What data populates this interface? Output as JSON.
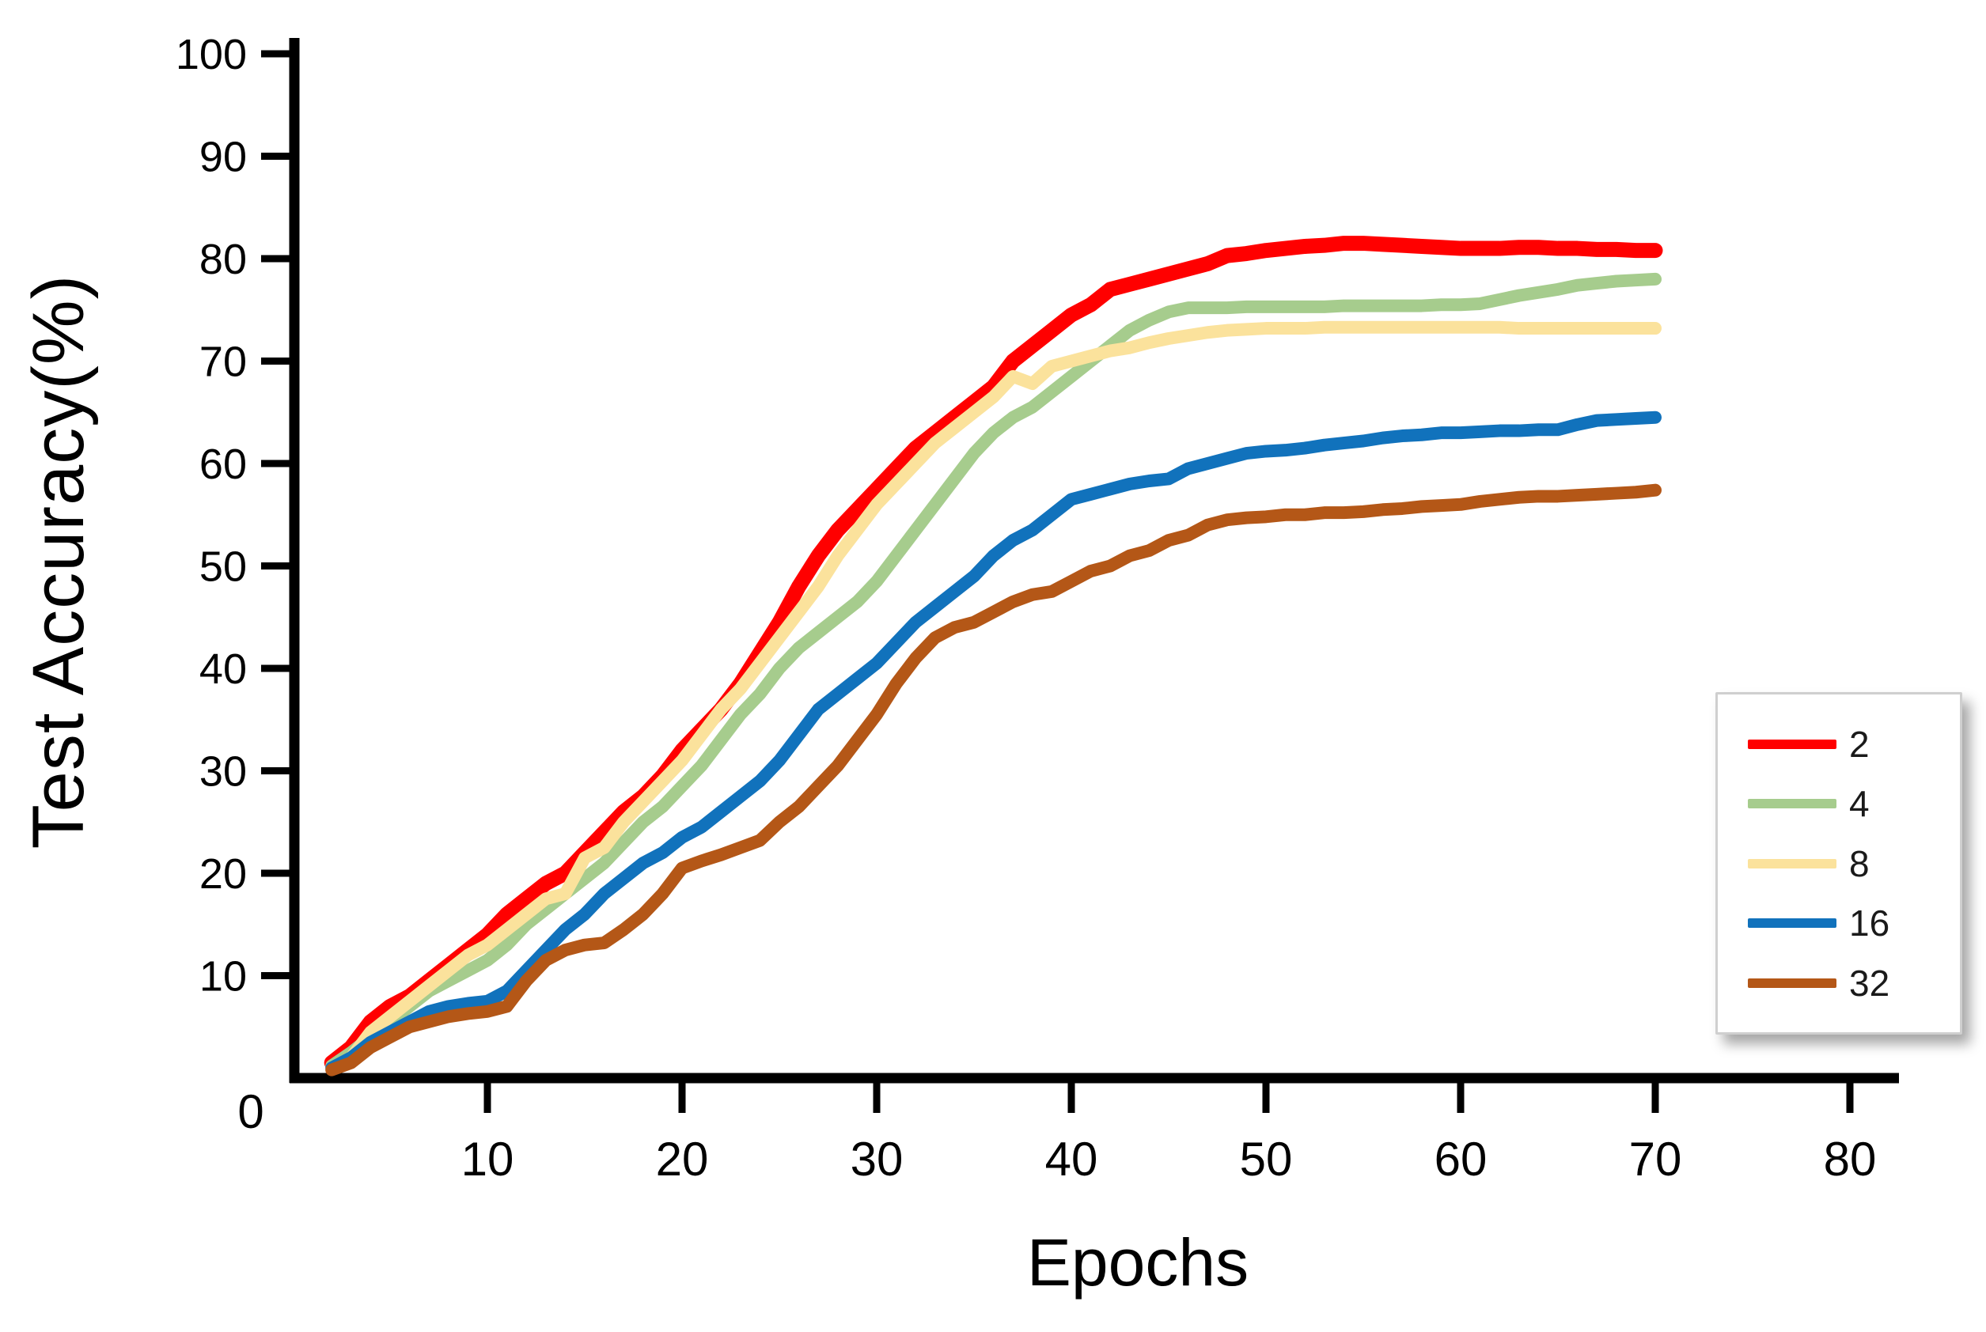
{
  "page": {
    "background": "#ffffff",
    "text_color": "#000000",
    "axis_color": "#000000"
  },
  "chart_data": {
    "type": "line",
    "title": "",
    "xlabel": "Epochs",
    "ylabel": "Test Accuracy(%)",
    "xlim": [
      0,
      83
    ],
    "ylim": [
      0,
      100
    ],
    "x_ticks": [
      0,
      10,
      20,
      30,
      40,
      50,
      60,
      70,
      80
    ],
    "y_ticks": [
      10,
      20,
      30,
      40,
      50,
      60,
      70,
      80,
      90,
      100
    ],
    "grid": false,
    "legend_position": "right-middle",
    "legend_border_color": "#cfcfcf",
    "x": [
      2,
      3,
      4,
      5,
      6,
      7,
      8,
      9,
      10,
      11,
      12,
      13,
      14,
      15,
      16,
      17,
      18,
      19,
      20,
      21,
      22,
      23,
      24,
      25,
      26,
      27,
      28,
      29,
      30,
      31,
      32,
      33,
      34,
      35,
      36,
      37,
      38,
      39,
      40,
      41,
      42,
      43,
      44,
      45,
      46,
      47,
      48,
      49,
      50,
      51,
      52,
      53,
      54,
      55,
      56,
      57,
      58,
      59,
      60,
      61,
      62,
      63,
      64,
      65,
      66,
      67,
      68,
      69,
      70
    ],
    "series": [
      {
        "name": "2",
        "color": "#ff0000",
        "values": [
          1.5,
          3,
          5.5,
          7,
          8,
          9.5,
          11,
          12.5,
          14,
          16,
          17.5,
          19,
          20,
          22,
          24,
          26,
          27.5,
          29.5,
          32,
          34,
          36,
          38.5,
          41.5,
          44.5,
          48,
          51,
          53.5,
          55.5,
          57.5,
          59.5,
          61.5,
          63,
          64.5,
          66,
          67.5,
          70,
          71.5,
          73,
          74.5,
          75.5,
          77,
          77.5,
          78,
          78.5,
          79,
          79.5,
          80.3,
          80.5,
          80.8,
          81,
          81.2,
          81.3,
          81.5,
          81.5,
          81.4,
          81.3,
          81.2,
          81.1,
          81,
          81,
          81,
          81.1,
          81.1,
          81,
          81,
          80.9,
          80.9,
          80.8,
          80.8
        ]
      },
      {
        "name": "4",
        "color": "#a6cc8d",
        "values": [
          1.2,
          2.5,
          4,
          5.5,
          7,
          8.5,
          9.5,
          10.5,
          11.5,
          13,
          15,
          16.5,
          18,
          19.5,
          21,
          23,
          25,
          26.5,
          28.5,
          30.5,
          33,
          35.5,
          37.5,
          40,
          42,
          43.5,
          45,
          46.5,
          48.5,
          51,
          53.5,
          56,
          58.5,
          61,
          63,
          64.5,
          65.5,
          67,
          68.5,
          70,
          71.5,
          73,
          74,
          74.8,
          75.2,
          75.2,
          75.2,
          75.3,
          75.3,
          75.3,
          75.3,
          75.3,
          75.4,
          75.4,
          75.4,
          75.4,
          75.4,
          75.5,
          75.5,
          75.6,
          76,
          76.4,
          76.7,
          77,
          77.4,
          77.6,
          77.8,
          77.9,
          78
        ]
      },
      {
        "name": "8",
        "color": "#fbe29c",
        "values": [
          1,
          2,
          4.5,
          6,
          7.5,
          9,
          10.5,
          12,
          13,
          14.5,
          16,
          17.5,
          18,
          21.5,
          22.5,
          25,
          27,
          29,
          31,
          33.5,
          36,
          38,
          40.5,
          43,
          45.5,
          48,
          51,
          53.5,
          56,
          58,
          60,
          62,
          63.5,
          65,
          66.5,
          68.5,
          67.8,
          69.5,
          70,
          70.5,
          71,
          71.3,
          71.8,
          72.2,
          72.5,
          72.8,
          73,
          73.1,
          73.2,
          73.2,
          73.2,
          73.3,
          73.3,
          73.3,
          73.3,
          73.3,
          73.3,
          73.3,
          73.3,
          73.3,
          73.3,
          73.2,
          73.2,
          73.2,
          73.2,
          73.2,
          73.2,
          73.2,
          73.2
        ]
      },
      {
        "name": "16",
        "color": "#1172bc",
        "values": [
          1,
          2,
          3.5,
          4.5,
          5.5,
          6.5,
          7,
          7.3,
          7.5,
          8.5,
          10.5,
          12.5,
          14.5,
          16,
          18,
          19.5,
          21,
          22,
          23.5,
          24.5,
          26,
          27.5,
          29,
          31,
          33.5,
          36,
          37.5,
          39,
          40.5,
          42.5,
          44.5,
          46,
          47.5,
          49,
          51,
          52.5,
          53.5,
          55,
          56.5,
          57,
          57.5,
          58,
          58.3,
          58.5,
          59.5,
          60,
          60.5,
          61,
          61.2,
          61.3,
          61.5,
          61.8,
          62,
          62.2,
          62.5,
          62.7,
          62.8,
          63,
          63,
          63.1,
          63.2,
          63.2,
          63.3,
          63.3,
          63.8,
          64.2,
          64.3,
          64.4,
          64.5
        ]
      },
      {
        "name": "32",
        "color": "#b45717",
        "values": [
          0.8,
          1.5,
          3,
          4,
          5,
          5.5,
          6,
          6.3,
          6.5,
          7,
          9.5,
          11.5,
          12.5,
          13,
          13.2,
          14.5,
          16,
          18,
          20.5,
          21.2,
          21.8,
          22.5,
          23.2,
          25,
          26.5,
          28.5,
          30.5,
          33,
          35.5,
          38.5,
          41,
          43,
          44,
          44.5,
          45.5,
          46.5,
          47.2,
          47.5,
          48.5,
          49.5,
          50,
          51,
          51.5,
          52.5,
          53,
          54,
          54.5,
          54.7,
          54.8,
          55,
          55,
          55.2,
          55.2,
          55.3,
          55.5,
          55.6,
          55.8,
          55.9,
          56,
          56.3,
          56.5,
          56.7,
          56.8,
          56.8,
          56.9,
          57,
          57.1,
          57.2,
          57.4
        ]
      }
    ]
  },
  "origin_label": "0"
}
